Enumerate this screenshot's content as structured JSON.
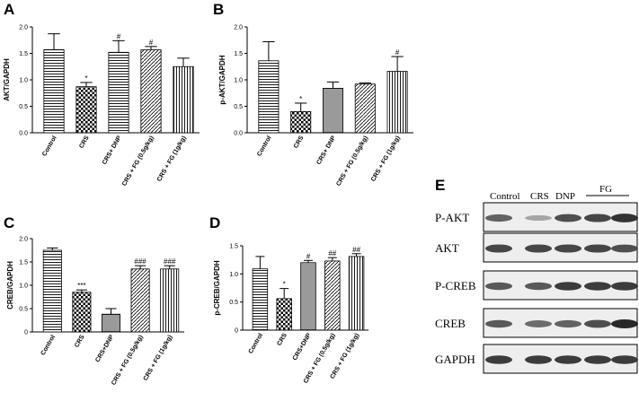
{
  "chart_data": [
    {
      "panel": "A",
      "type": "bar",
      "ylabel": "AKT/GAPDH",
      "ylim": [
        0,
        2.0
      ],
      "yticks": [
        "0.0",
        "0.5",
        "1.0",
        "1.5",
        "2.0"
      ],
      "categories": [
        "Control",
        "CRS",
        "CRS+ DNP",
        "CRS + FG (0.5g/kg)",
        "CRS + FG (1g/kg)"
      ],
      "values": [
        1.57,
        0.87,
        1.52,
        1.57,
        1.25
      ],
      "errors": [
        0.3,
        0.08,
        0.22,
        0.06,
        0.16
      ],
      "annotations": [
        "",
        "*",
        "#",
        "#",
        ""
      ]
    },
    {
      "panel": "B",
      "type": "bar",
      "ylabel": "p-AKT/GAPDH",
      "ylim": [
        0,
        2.0
      ],
      "yticks": [
        "0.0",
        "0.5",
        "1.0",
        "1.5",
        "2.0"
      ],
      "categories": [
        "Control",
        "CRS",
        "CRS+ DNP",
        "CRS + FG (0.5g/kg)",
        "CRS + FG (1g/kg)"
      ],
      "values": [
        1.36,
        0.4,
        0.84,
        0.92,
        1.16
      ],
      "errors": [
        0.36,
        0.16,
        0.12,
        0.02,
        0.28
      ],
      "annotations": [
        "",
        "*",
        "",
        "",
        "#"
      ]
    },
    {
      "panel": "C",
      "type": "bar",
      "ylabel": "CREB/GAPDH",
      "ylim": [
        0,
        2.0
      ],
      "yticks": [
        "0",
        "0.5",
        "1.0",
        "1.5",
        "2.0"
      ],
      "categories": [
        "Control",
        "CRS",
        "CRS+DNP",
        "CRS + FG (0.5g/kg)",
        "CRS + FG (1g/kg)"
      ],
      "values": [
        1.75,
        0.85,
        0.38,
        1.35,
        1.35
      ],
      "errors": [
        0.05,
        0.05,
        0.12,
        0.07,
        0.07
      ],
      "annotations": [
        "",
        "***",
        "",
        "###",
        "###"
      ]
    },
    {
      "panel": "D",
      "type": "bar",
      "ylabel": "p-CREB/GAPDH",
      "ylim": [
        0,
        1.5
      ],
      "yticks": [
        "0",
        "0.5",
        "1.0",
        "1.5"
      ],
      "categories": [
        "Control",
        "CRS",
        "CRS+DNP",
        "CRS + FG (0.5g/kg)",
        "CRS + FG (1g/kg)"
      ],
      "values": [
        1.09,
        0.56,
        1.2,
        1.23,
        1.31
      ],
      "errors": [
        0.22,
        0.18,
        0.04,
        0.06,
        0.05
      ],
      "annotations": [
        "",
        "*",
        "#",
        "##",
        "##"
      ]
    }
  ],
  "blot": {
    "letter": "E",
    "columns": [
      "Control",
      "CRS",
      "DNP",
      "FG"
    ],
    "rows": [
      {
        "label": "P-AKT",
        "intensity": [
          0.7,
          0.35,
          0.8,
          0.85,
          0.95
        ]
      },
      {
        "label": "AKT",
        "intensity": [
          0.85,
          0.85,
          0.85,
          0.85,
          0.8
        ]
      },
      {
        "label": "P-CREB",
        "intensity": [
          0.75,
          0.75,
          0.9,
          0.9,
          0.9
        ]
      },
      {
        "label": "CREB",
        "intensity": [
          0.75,
          0.65,
          0.7,
          0.8,
          1.0
        ]
      },
      {
        "label": "GAPDH",
        "intensity": [
          0.9,
          0.9,
          0.9,
          0.9,
          0.9
        ]
      }
    ]
  }
}
